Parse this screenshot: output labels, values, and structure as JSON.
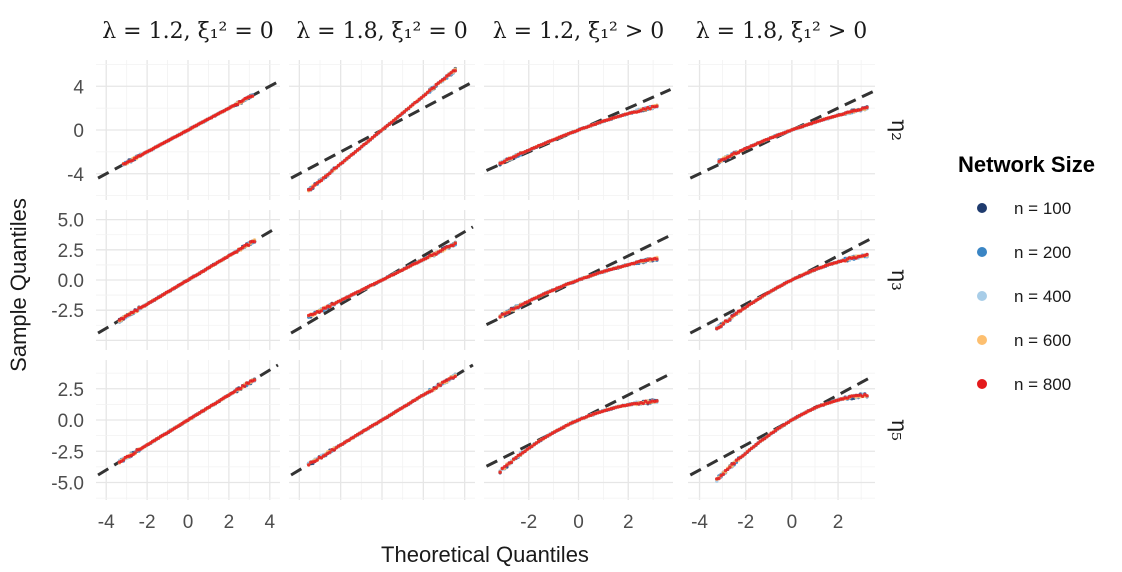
{
  "chart_data": {
    "type": "scatter",
    "xlabel": "Theoretical Quantiles",
    "ylabel": "Sample Quantiles",
    "column_strips": [
      "λ = 1.2, ξ₁² = 0",
      "λ = 1.8, ξ₁² = 0",
      "λ = 1.2, ξ₁² > 0",
      "λ = 1.8, ξ₁² > 0"
    ],
    "row_strips": [
      "η₂",
      "η₃",
      "η₅"
    ],
    "legend": {
      "title": "Network Size",
      "position": "right",
      "entries": [
        {
          "label": "n = 100",
          "color": "#1f3b6e"
        },
        {
          "label": "n = 200",
          "color": "#3a85c4"
        },
        {
          "label": "n = 400",
          "color": "#a8cde8"
        },
        {
          "label": "n = 600",
          "color": "#fdbf6f"
        },
        {
          "label": "n = 800",
          "color": "#e41a1c"
        }
      ]
    },
    "columns": [
      {
        "xlim": [
          -4.5,
          4.5
        ],
        "xticks": [
          -4,
          -2,
          0,
          2,
          4
        ]
      },
      {
        "xlim": [
          -4.5,
          4.5
        ],
        "xticks": []
      },
      {
        "xlim": [
          -3.8,
          3.8
        ],
        "xticks": [
          -2,
          0,
          2
        ]
      },
      {
        "xlim": [
          -4.5,
          3.6
        ],
        "xticks": [
          -4,
          -2,
          0,
          2
        ]
      }
    ],
    "rows": [
      {
        "ylim": [
          -6.4,
          6.4
        ],
        "yticks": [
          -4,
          0,
          4
        ],
        "ytick_labels": [
          "-4",
          "0",
          "4"
        ]
      },
      {
        "ylim": [
          -5.8,
          5.8
        ],
        "yticks": [
          -2.5,
          0,
          2.5,
          5
        ],
        "ytick_labels": [
          "-2.5",
          "0.0",
          "2.5",
          "5.0"
        ]
      },
      {
        "ylim": [
          -6.4,
          4.8
        ],
        "yticks": [
          -5,
          -2.5,
          0,
          2.5
        ],
        "ytick_labels": [
          "-5.0",
          "-2.5",
          "0.0",
          "2.5"
        ]
      }
    ],
    "reference_line": {
      "style": "dashed",
      "color": "#333333"
    },
    "panels": [
      {
        "row": 0,
        "col": 0,
        "qq_range": [
          -3.2,
          3.2
        ],
        "ref_slope": 1.0,
        "sample": {
          "type": "linear",
          "scale": 1.0
        }
      },
      {
        "row": 0,
        "col": 1,
        "qq_range": [
          -3.6,
          3.6
        ],
        "ref_slope": 1.0,
        "sample": {
          "type": "linear",
          "scale": 1.55
        }
      },
      {
        "row": 0,
        "col": 2,
        "qq_range": [
          -3.2,
          3.2
        ],
        "ref_slope": 1.0,
        "sample": {
          "type": "curve",
          "a": 0.85,
          "b": 0.9,
          "c": -0.05
        }
      },
      {
        "row": 0,
        "col": 3,
        "qq_range": [
          -3.2,
          3.3
        ],
        "ref_slope": 1.0,
        "sample": {
          "type": "curve",
          "a": 0.75,
          "b": 0.8,
          "c": -0.04
        }
      },
      {
        "row": 1,
        "col": 0,
        "qq_range": [
          -3.4,
          3.3
        ],
        "ref_slope": 1.0,
        "sample": {
          "type": "linear",
          "scale": 1.0
        }
      },
      {
        "row": 1,
        "col": 1,
        "qq_range": [
          -3.6,
          3.6
        ],
        "ref_slope": 1.0,
        "sample": {
          "type": "linear",
          "scale": 0.85
        }
      },
      {
        "row": 1,
        "col": 2,
        "qq_range": [
          -3.2,
          3.2
        ],
        "ref_slope": 1.0,
        "sample": {
          "type": "curve",
          "a": 0.75,
          "b": 0.75,
          "c": -0.06
        }
      },
      {
        "row": 1,
        "col": 3,
        "qq_range": [
          -3.3,
          3.3
        ],
        "ref_slope": 1.0,
        "sample": {
          "type": "curve",
          "a": 0.95,
          "b": 0.75,
          "c": -0.1
        }
      },
      {
        "row": 2,
        "col": 0,
        "qq_range": [
          -3.4,
          3.3
        ],
        "ref_slope": 1.0,
        "sample": {
          "type": "linear",
          "scale": 1.0
        }
      },
      {
        "row": 2,
        "col": 1,
        "qq_range": [
          -3.6,
          3.6
        ],
        "ref_slope": 1.0,
        "sample": {
          "type": "linear",
          "scale": 1.0
        }
      },
      {
        "row": 2,
        "col": 2,
        "qq_range": [
          -3.2,
          3.2
        ],
        "ref_slope": 1.0,
        "sample": {
          "type": "curve",
          "a": 0.85,
          "b": 0.5,
          "c": -0.12
        }
      },
      {
        "row": 2,
        "col": 3,
        "qq_range": [
          -3.3,
          3.3
        ],
        "ref_slope": 1.0,
        "sample": {
          "type": "curve",
          "a": 1.1,
          "b": 0.75,
          "c": -0.15
        }
      }
    ]
  }
}
